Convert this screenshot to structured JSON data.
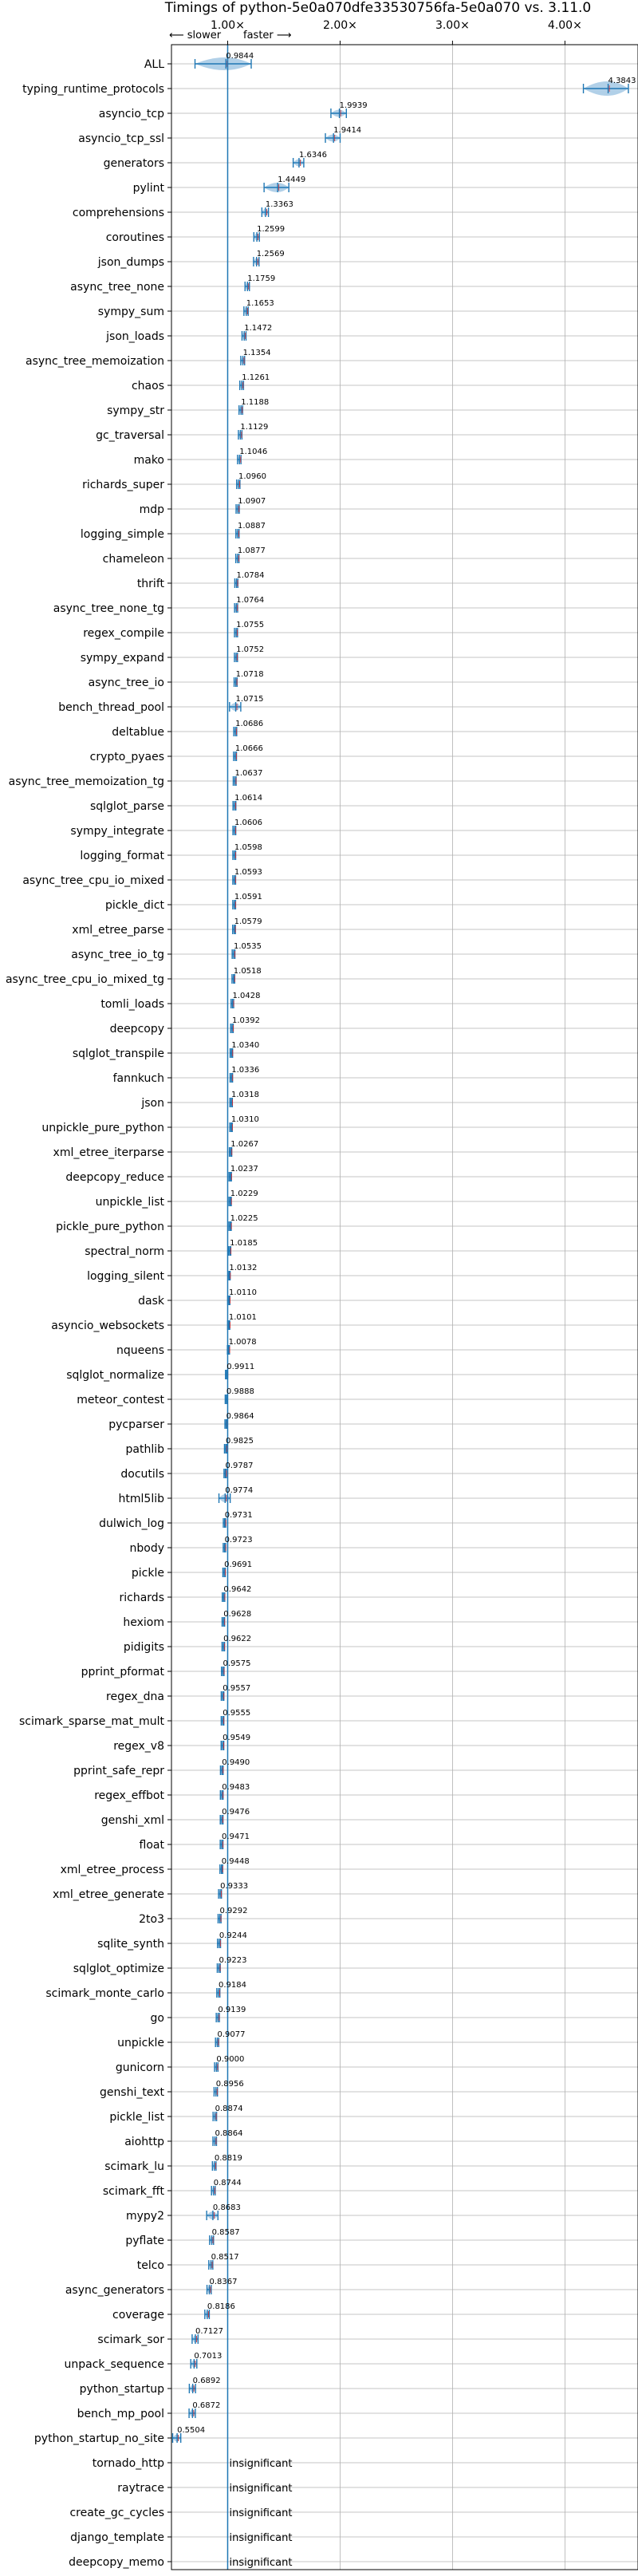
{
  "chart_data": {
    "type": "violin",
    "title": "Timings of python-5e0a070dfe33530756fa-5e0a070 vs. 3.11.0",
    "direction_labels": {
      "slower": "⟵ slower",
      "faster": "faster ⟶"
    },
    "xlim": [
      0.5,
      4.65
    ],
    "xticks": [
      1.0,
      2.0,
      3.0,
      4.0
    ],
    "xtick_labels": [
      "1.00×",
      "2.00×",
      "3.00×",
      "4.00×"
    ],
    "reference_line": 1.0,
    "insignificant_label": "insignificant",
    "series_color": "#1f77b4",
    "violin_fill": "#a9cbe6",
    "median_color": "#d62728",
    "benchmarks": [
      {
        "name": "ALL",
        "value": 0.9844,
        "label": "0.9844"
      },
      {
        "name": "typing_runtime_protocols",
        "value": 4.3843,
        "label": "4.3843"
      },
      {
        "name": "asyncio_tcp",
        "value": 1.9939,
        "label": "1.9939"
      },
      {
        "name": "asyncio_tcp_ssl",
        "value": 1.9414,
        "label": "1.9414"
      },
      {
        "name": "generators",
        "value": 1.6346,
        "label": "1.6346"
      },
      {
        "name": "pylint",
        "value": 1.4449,
        "label": "1.4449"
      },
      {
        "name": "comprehensions",
        "value": 1.3363,
        "label": "1.3363"
      },
      {
        "name": "coroutines",
        "value": 1.2599,
        "label": "1.2599"
      },
      {
        "name": "json_dumps",
        "value": 1.2569,
        "label": "1.2569"
      },
      {
        "name": "async_tree_none",
        "value": 1.1759,
        "label": "1.1759"
      },
      {
        "name": "sympy_sum",
        "value": 1.1653,
        "label": "1.1653"
      },
      {
        "name": "json_loads",
        "value": 1.1472,
        "label": "1.1472"
      },
      {
        "name": "async_tree_memoization",
        "value": 1.1354,
        "label": "1.1354"
      },
      {
        "name": "chaos",
        "value": 1.1261,
        "label": "1.1261"
      },
      {
        "name": "sympy_str",
        "value": 1.1188,
        "label": "1.1188"
      },
      {
        "name": "gc_traversal",
        "value": 1.1129,
        "label": "1.1129"
      },
      {
        "name": "mako",
        "value": 1.1046,
        "label": "1.1046"
      },
      {
        "name": "richards_super",
        "value": 1.096,
        "label": "1.0960"
      },
      {
        "name": "mdp",
        "value": 1.0907,
        "label": "1.0907"
      },
      {
        "name": "logging_simple",
        "value": 1.0887,
        "label": "1.0887"
      },
      {
        "name": "chameleon",
        "value": 1.0877,
        "label": "1.0877"
      },
      {
        "name": "thrift",
        "value": 1.0784,
        "label": "1.0784"
      },
      {
        "name": "async_tree_none_tg",
        "value": 1.0764,
        "label": "1.0764"
      },
      {
        "name": "regex_compile",
        "value": 1.0755,
        "label": "1.0755"
      },
      {
        "name": "sympy_expand",
        "value": 1.0752,
        "label": "1.0752"
      },
      {
        "name": "async_tree_io",
        "value": 1.0718,
        "label": "1.0718"
      },
      {
        "name": "bench_thread_pool",
        "value": 1.0715,
        "label": "1.0715"
      },
      {
        "name": "deltablue",
        "value": 1.0686,
        "label": "1.0686"
      },
      {
        "name": "crypto_pyaes",
        "value": 1.0666,
        "label": "1.0666"
      },
      {
        "name": "async_tree_memoization_tg",
        "value": 1.0637,
        "label": "1.0637"
      },
      {
        "name": "sqlglot_parse",
        "value": 1.0614,
        "label": "1.0614"
      },
      {
        "name": "sympy_integrate",
        "value": 1.0606,
        "label": "1.0606"
      },
      {
        "name": "logging_format",
        "value": 1.0598,
        "label": "1.0598"
      },
      {
        "name": "async_tree_cpu_io_mixed",
        "value": 1.0593,
        "label": "1.0593"
      },
      {
        "name": "pickle_dict",
        "value": 1.0591,
        "label": "1.0591"
      },
      {
        "name": "xml_etree_parse",
        "value": 1.0579,
        "label": "1.0579"
      },
      {
        "name": "async_tree_io_tg",
        "value": 1.0535,
        "label": "1.0535"
      },
      {
        "name": "async_tree_cpu_io_mixed_tg",
        "value": 1.0518,
        "label": "1.0518"
      },
      {
        "name": "tomli_loads",
        "value": 1.0428,
        "label": "1.0428"
      },
      {
        "name": "deepcopy",
        "value": 1.0392,
        "label": "1.0392"
      },
      {
        "name": "sqlglot_transpile",
        "value": 1.034,
        "label": "1.0340"
      },
      {
        "name": "fannkuch",
        "value": 1.0336,
        "label": "1.0336"
      },
      {
        "name": "json",
        "value": 1.0318,
        "label": "1.0318"
      },
      {
        "name": "unpickle_pure_python",
        "value": 1.031,
        "label": "1.0310"
      },
      {
        "name": "xml_etree_iterparse",
        "value": 1.0267,
        "label": "1.0267"
      },
      {
        "name": "deepcopy_reduce",
        "value": 1.0237,
        "label": "1.0237"
      },
      {
        "name": "unpickle_list",
        "value": 1.0229,
        "label": "1.0229"
      },
      {
        "name": "pickle_pure_python",
        "value": 1.0225,
        "label": "1.0225"
      },
      {
        "name": "spectral_norm",
        "value": 1.0185,
        "label": "1.0185"
      },
      {
        "name": "logging_silent",
        "value": 1.0132,
        "label": "1.0132"
      },
      {
        "name": "dask",
        "value": 1.011,
        "label": "1.0110"
      },
      {
        "name": "asyncio_websockets",
        "value": 1.0101,
        "label": "1.0101"
      },
      {
        "name": "nqueens",
        "value": 1.0078,
        "label": "1.0078"
      },
      {
        "name": "sqlglot_normalize",
        "value": 0.9911,
        "label": "0.9911"
      },
      {
        "name": "meteor_contest",
        "value": 0.9888,
        "label": "0.9888"
      },
      {
        "name": "pycparser",
        "value": 0.9864,
        "label": "0.9864"
      },
      {
        "name": "pathlib",
        "value": 0.9825,
        "label": "0.9825"
      },
      {
        "name": "docutils",
        "value": 0.9787,
        "label": "0.9787"
      },
      {
        "name": "html5lib",
        "value": 0.9774,
        "label": "0.9774"
      },
      {
        "name": "dulwich_log",
        "value": 0.9731,
        "label": "0.9731"
      },
      {
        "name": "nbody",
        "value": 0.9723,
        "label": "0.9723"
      },
      {
        "name": "pickle",
        "value": 0.9691,
        "label": "0.9691"
      },
      {
        "name": "richards",
        "value": 0.9642,
        "label": "0.9642"
      },
      {
        "name": "hexiom",
        "value": 0.9628,
        "label": "0.9628"
      },
      {
        "name": "pidigits",
        "value": 0.9622,
        "label": "0.9622"
      },
      {
        "name": "pprint_pformat",
        "value": 0.9575,
        "label": "0.9575"
      },
      {
        "name": "regex_dna",
        "value": 0.9557,
        "label": "0.9557"
      },
      {
        "name": "scimark_sparse_mat_mult",
        "value": 0.9555,
        "label": "0.9555"
      },
      {
        "name": "regex_v8",
        "value": 0.9549,
        "label": "0.9549"
      },
      {
        "name": "pprint_safe_repr",
        "value": 0.949,
        "label": "0.9490"
      },
      {
        "name": "regex_effbot",
        "value": 0.9483,
        "label": "0.9483"
      },
      {
        "name": "genshi_xml",
        "value": 0.9476,
        "label": "0.9476"
      },
      {
        "name": "float",
        "value": 0.9471,
        "label": "0.9471"
      },
      {
        "name": "xml_etree_process",
        "value": 0.9448,
        "label": "0.9448"
      },
      {
        "name": "xml_etree_generate",
        "value": 0.9333,
        "label": "0.9333"
      },
      {
        "name": "2to3",
        "value": 0.9292,
        "label": "0.9292"
      },
      {
        "name": "sqlite_synth",
        "value": 0.9244,
        "label": "0.9244"
      },
      {
        "name": "sqlglot_optimize",
        "value": 0.9223,
        "label": "0.9223"
      },
      {
        "name": "scimark_monte_carlo",
        "value": 0.9184,
        "label": "0.9184"
      },
      {
        "name": "go",
        "value": 0.9139,
        "label": "0.9139"
      },
      {
        "name": "unpickle",
        "value": 0.9077,
        "label": "0.9077"
      },
      {
        "name": "gunicorn",
        "value": 0.9,
        "label": "0.9000"
      },
      {
        "name": "genshi_text",
        "value": 0.8956,
        "label": "0.8956"
      },
      {
        "name": "pickle_list",
        "value": 0.8874,
        "label": "0.8874"
      },
      {
        "name": "aiohttp",
        "value": 0.8864,
        "label": "0.8864"
      },
      {
        "name": "scimark_lu",
        "value": 0.8819,
        "label": "0.8819"
      },
      {
        "name": "scimark_fft",
        "value": 0.8744,
        "label": "0.8744"
      },
      {
        "name": "mypy2",
        "value": 0.8683,
        "label": "0.8683"
      },
      {
        "name": "pyflate",
        "value": 0.8587,
        "label": "0.8587"
      },
      {
        "name": "telco",
        "value": 0.8517,
        "label": "0.8517"
      },
      {
        "name": "async_generators",
        "value": 0.8367,
        "label": "0.8367"
      },
      {
        "name": "coverage",
        "value": 0.8186,
        "label": "0.8186"
      },
      {
        "name": "scimark_sor",
        "value": 0.7127,
        "label": "0.7127"
      },
      {
        "name": "unpack_sequence",
        "value": 0.7013,
        "label": "0.7013"
      },
      {
        "name": "python_startup",
        "value": 0.6892,
        "label": "0.6892"
      },
      {
        "name": "bench_mp_pool",
        "value": 0.6872,
        "label": "0.6872"
      },
      {
        "name": "python_startup_no_site",
        "value": 0.5504,
        "label": "0.5504"
      },
      {
        "name": "tornado_http",
        "value": null,
        "label": ""
      },
      {
        "name": "raytrace",
        "value": null,
        "label": ""
      },
      {
        "name": "create_gc_cycles",
        "value": null,
        "label": ""
      },
      {
        "name": "django_template",
        "value": null,
        "label": ""
      },
      {
        "name": "deepcopy_memo",
        "value": null,
        "label": ""
      }
    ]
  }
}
